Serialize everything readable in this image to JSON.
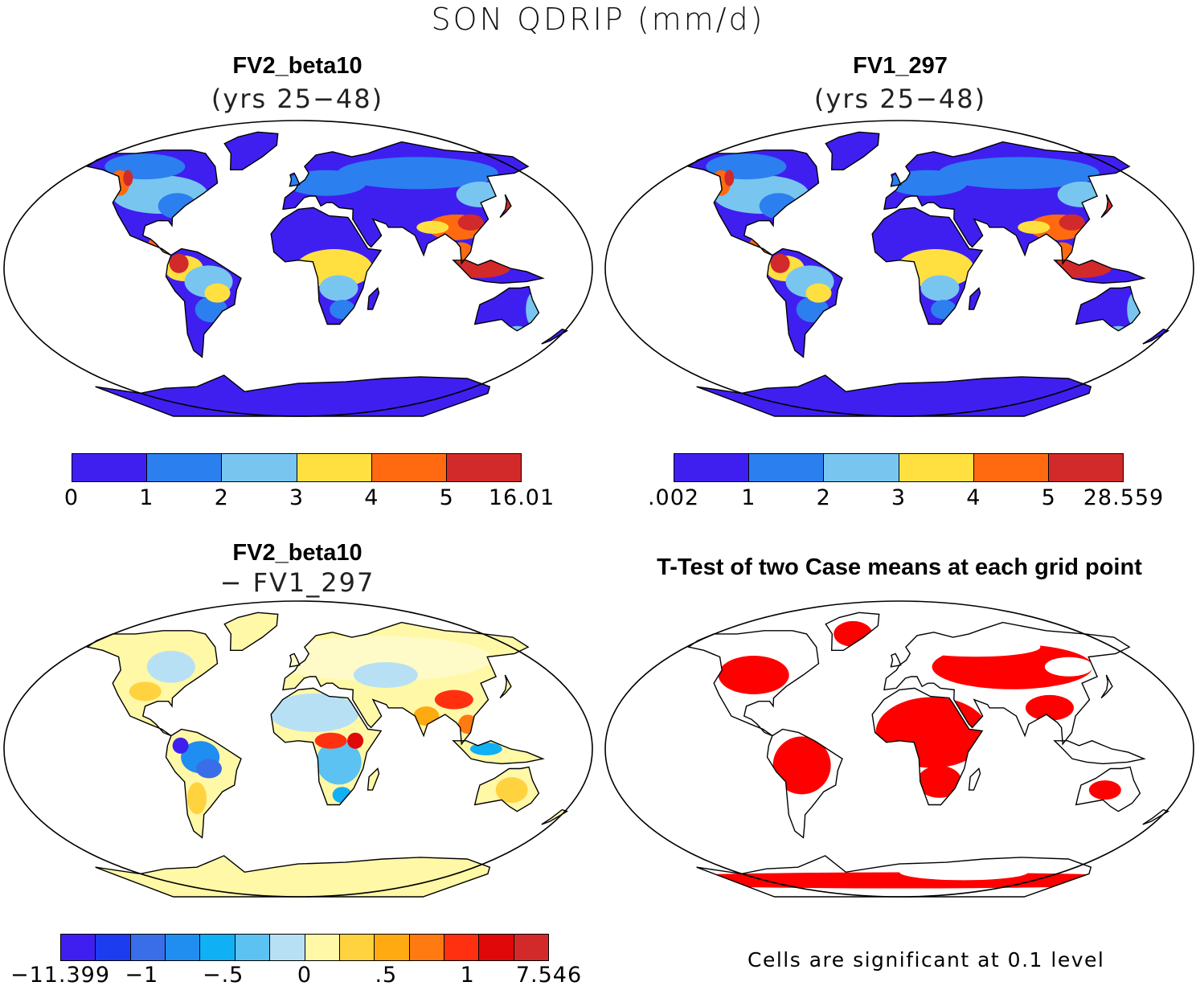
{
  "main_title": "SON QDRIP (mm/d)",
  "panels": {
    "tl": {
      "title": "FV2_beta10",
      "subtitle": "(yrs 25−48)",
      "colors": [
        "#3f1ff0",
        "#2c7fef",
        "#78c6f0",
        "#ffe040",
        "#ff6a10",
        "#d22a2a"
      ],
      "ticks": [
        "0",
        "1",
        "2",
        "3",
        "4",
        "5",
        "16.01"
      ]
    },
    "tr": {
      "title": "FV1_297",
      "subtitle": "(yrs 25−48)",
      "colors": [
        "#3f1ff0",
        "#2c7fef",
        "#78c6f0",
        "#ffe040",
        "#ff6a10",
        "#d22a2a"
      ],
      "ticks": [
        ".002",
        "1",
        "2",
        "3",
        "4",
        "5",
        "28.559"
      ]
    },
    "bl": {
      "title": "FV2_beta10",
      "subtitle": "− FV1_297",
      "colors": [
        "#3f1ff0",
        "#1b3cef",
        "#3a6ee8",
        "#1f8ef0",
        "#10b0f5",
        "#5cc2f2",
        "#b8e0f5",
        "#fff8a6",
        "#ffd23f",
        "#ffaa10",
        "#ff7a10",
        "#ff3010",
        "#e00808",
        "#d22a2a"
      ],
      "ticks": [
        "−11.399",
        "−1",
        "−.5",
        "0",
        ".5",
        "1",
        "7.546"
      ]
    },
    "br": {
      "title": "T-Test of two Case means at each grid point",
      "note": "Cells are significant at 0.1 level",
      "mask_color": "#ff0000"
    }
  }
}
